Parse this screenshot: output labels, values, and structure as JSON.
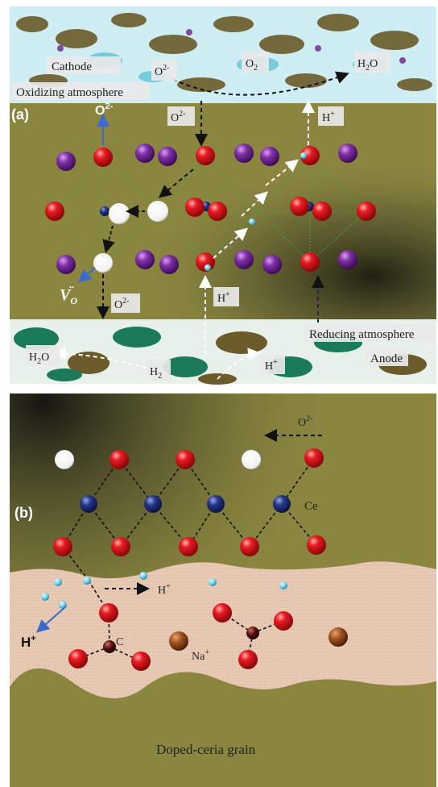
{
  "panel_a": {
    "tag": "(a)",
    "cathode": "Cathode",
    "oxidizing": "Oxidizing atmosphere",
    "o2minus_top": "O",
    "o2minus_sup": "2-",
    "o2": "O",
    "o2_sub": "2",
    "h2o_top": "H",
    "h2o_top_sub": "2",
    "h2o_top_end": "O",
    "o2minus_mid": "O",
    "o2minus_mid_sup": "2-",
    "hplus_top": "H",
    "hplus_sup": "+",
    "o2minus_bold": "O",
    "o2minus_bold_sup": "2-",
    "vacancy_v": "V",
    "vacancy_sub": "O",
    "vacancy_sup": "··",
    "o2minus_low": "O",
    "o2minus_low_sup": "2-",
    "hplus_low": "H",
    "hplus_low_sup": "+",
    "reducing": "Reducing atmosphere",
    "anode": "Anode",
    "h2o_bottom": "H",
    "h2o_bottom_sub": "2",
    "h2o_bottom_end": "O",
    "h2_bottom": "H",
    "h2_bottom_sub": "2",
    "hplus_bottom": "H",
    "hplus_bottom_sup": "+"
  },
  "panel_b": {
    "tag": "(b)",
    "o2minus": "O",
    "o2minus_sup": "2-",
    "ce": "Ce",
    "hplus": "H",
    "hplus_sup": "+",
    "hplus_bold": "H",
    "hplus_bold_sup": "+",
    "c": "C",
    "na": "Na",
    "na_sup": "+",
    "grain": "Doped-ceria grain"
  },
  "colors": {
    "oxygen": "#d9121a",
    "cerium": "#1a2a6e",
    "dopant": "#7a2a9a",
    "vacancy": "#ffffff",
    "proton": "#6fd0e8",
    "sodium": "#a0521c",
    "carbon": "#5a1010",
    "electrolyte": "#8a8640",
    "cathode": "#6fc8d8",
    "anode": "#1a7a5a",
    "carbonate_layer": "#e8c9b4"
  }
}
